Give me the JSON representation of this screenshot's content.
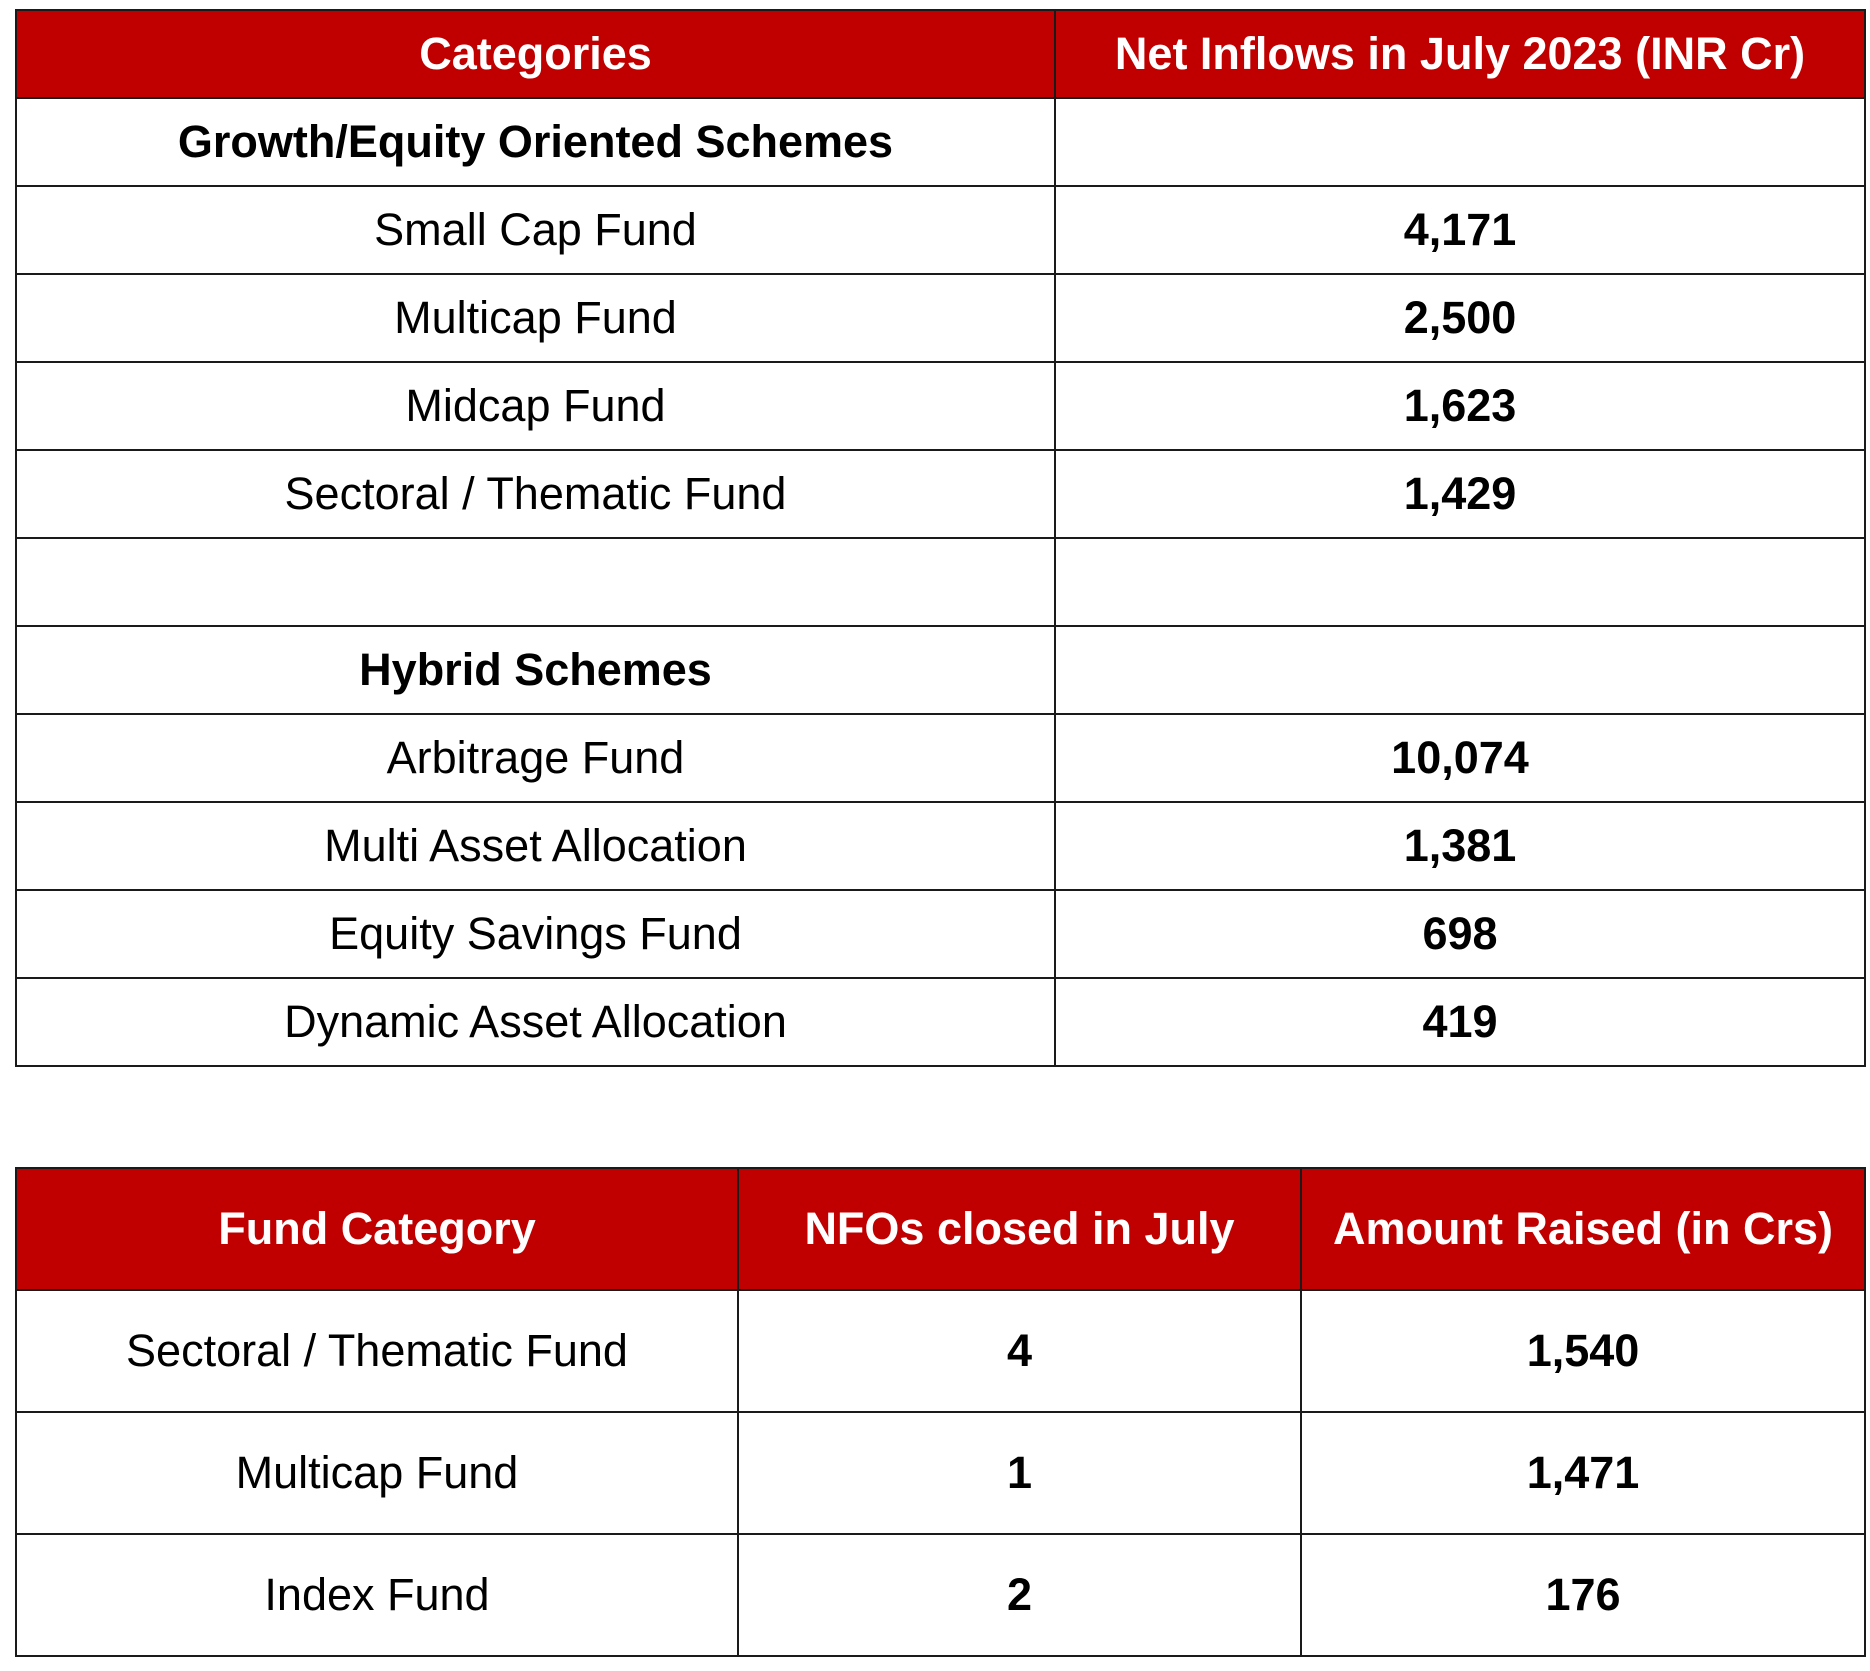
{
  "net_inflows_table": {
    "headers": [
      "Categories",
      "Net Inflows in July 2023 (INR Cr)"
    ],
    "sections": [
      {
        "title": "Growth/Equity Oriented Schemes",
        "rows": [
          {
            "category": "Small Cap Fund",
            "value": "4,171"
          },
          {
            "category": "Multicap Fund",
            "value": "2,500"
          },
          {
            "category": "Midcap Fund",
            "value": "1,623"
          },
          {
            "category": "Sectoral / Thematic Fund",
            "value": "1,429"
          }
        ]
      },
      {
        "title": "Hybrid Schemes",
        "rows": [
          {
            "category": "Arbitrage Fund",
            "value": "10,074"
          },
          {
            "category": "Multi Asset Allocation",
            "value": "1,381"
          },
          {
            "category": "Equity Savings Fund",
            "value": "698"
          },
          {
            "category": "Dynamic Asset Allocation",
            "value": "419"
          }
        ]
      }
    ]
  },
  "nfo_table": {
    "headers": [
      "Fund Category",
      "NFOs closed in July",
      "Amount Raised (in Crs)"
    ],
    "rows": [
      {
        "category": "Sectoral / Thematic Fund",
        "nfos": "4",
        "amount": "1,540"
      },
      {
        "category": "Multicap Fund",
        "nfos": "1",
        "amount": "1,471"
      },
      {
        "category": "Index Fund",
        "nfos": "2",
        "amount": "176"
      }
    ]
  },
  "colors": {
    "header_background": "#c00000",
    "header_text": "#ffffff",
    "border": "#1a1a1a"
  }
}
